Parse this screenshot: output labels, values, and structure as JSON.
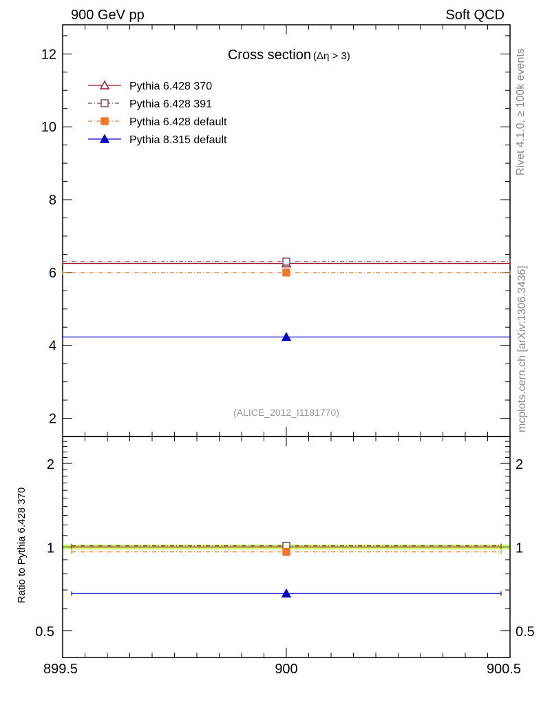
{
  "header": {
    "left_label": "900 GeV pp",
    "right_label": "Soft QCD"
  },
  "side_labels": {
    "rivet": "Rivet 4.1.0, ≥ 100k events",
    "mcplots": "mcplots.cern.ch [arXiv:1306.3436]"
  },
  "chart_data": [
    {
      "type": "line",
      "panel": "main",
      "title": "Cross section",
      "title_suffix": "(Δη > 3)",
      "analysis_label": "(ALICE_2012_I1181770)",
      "xlim": [
        899.5,
        900.5
      ],
      "ylim": [
        1.5,
        12.8
      ],
      "yticks": [
        2,
        4,
        6,
        8,
        10,
        12
      ],
      "ytick_labels": [
        "2",
        "4",
        "6",
        "8",
        "10",
        "12"
      ],
      "grid": false,
      "legend_position": "top-left",
      "series": [
        {
          "name": "Pythia 6.428 370",
          "x": [
            900
          ],
          "y": [
            6.25
          ],
          "xerr": [
            899.5,
            900.5
          ],
          "color": "#a01020",
          "marker": "open-triangle",
          "dash": "none"
        },
        {
          "name": "Pythia 6.428 391",
          "x": [
            900
          ],
          "y": [
            6.3
          ],
          "xerr": [
            899.5,
            900.5
          ],
          "color": "#7a3a55",
          "marker": "open-square",
          "dash": "6,3,1,3"
        },
        {
          "name": "Pythia 6.428 default",
          "x": [
            900
          ],
          "y": [
            6.0
          ],
          "xerr": [
            899.5,
            900.5
          ],
          "color": "#f07828",
          "marker": "filled-square",
          "dash": "6,3,1,3"
        },
        {
          "name": "Pythia 8.315 default",
          "x": [
            900
          ],
          "y": [
            4.23
          ],
          "xerr": [
            899.5,
            900.5
          ],
          "color": "#0000cc",
          "marker": "filled-triangle",
          "dash": "none"
        }
      ]
    },
    {
      "type": "line",
      "panel": "ratio",
      "ylabel": "Ratio to Pythia 6.428 370",
      "xlim": [
        899.5,
        900.5
      ],
      "xticks": [
        899.5,
        900,
        900.5
      ],
      "xtick_labels": [
        "899.5",
        "900",
        "900.5"
      ],
      "ylim": [
        0.4,
        2.5
      ],
      "scale": "log",
      "yticks": [
        0.5,
        1,
        2
      ],
      "ytick_labels": [
        "0.5",
        "1",
        "2"
      ],
      "reference_band_color": "#ccff66",
      "series": [
        {
          "name": "Pythia 6.428 370",
          "x": [
            900
          ],
          "y": [
            1.0
          ],
          "color": "#a01020",
          "marker": "none",
          "dash": "none"
        },
        {
          "name": "Pythia 6.428 391",
          "x": [
            900
          ],
          "y": [
            1.01
          ],
          "color": "#7a3a55",
          "marker": "open-square",
          "dash": "6,3,1,3"
        },
        {
          "name": "Pythia 6.428 default",
          "x": [
            900
          ],
          "y": [
            0.96
          ],
          "color": "#f07828",
          "marker": "filled-square",
          "dash": "6,3,1,3"
        },
        {
          "name": "Pythia 8.315 default",
          "x": [
            900
          ],
          "y": [
            0.68
          ],
          "color": "#0000cc",
          "marker": "filled-triangle",
          "dash": "none"
        }
      ]
    }
  ]
}
